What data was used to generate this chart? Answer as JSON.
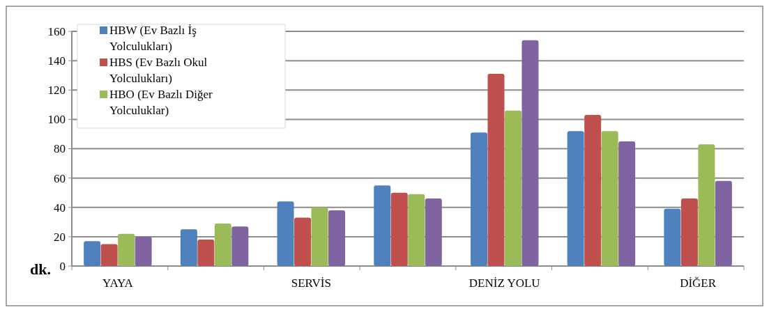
{
  "chart_data": {
    "type": "bar",
    "ylabel": "dk.",
    "categories": [
      "YAYA",
      null,
      "SERVİS",
      null,
      "DENİZ YOLU",
      null,
      "DİĞER"
    ],
    "series": [
      {
        "name": "HBW (Ev Bazlı İş Yolculukları)",
        "color": "#4f81bd",
        "values": [
          17,
          25,
          44,
          55,
          91,
          92,
          39
        ]
      },
      {
        "name": "HBS (Ev Bazlı Okul Yolculukları)",
        "color": "#c0504d",
        "values": [
          15,
          18,
          33,
          50,
          131,
          103,
          46
        ]
      },
      {
        "name": "HBO (Ev Bazlı Diğer Yolculuklar)",
        "color": "#9bbb59",
        "values": [
          22,
          29,
          40,
          49,
          106,
          92,
          83
        ]
      },
      {
        "color": "#8064a2",
        "values": [
          20,
          27,
          38,
          46,
          154,
          85,
          58
        ]
      }
    ],
    "ylim": [
      0,
      160
    ],
    "yticks": [
      0,
      20,
      40,
      60,
      80,
      100,
      120,
      140,
      160
    ],
    "grid": "y",
    "legend": "top left"
  }
}
